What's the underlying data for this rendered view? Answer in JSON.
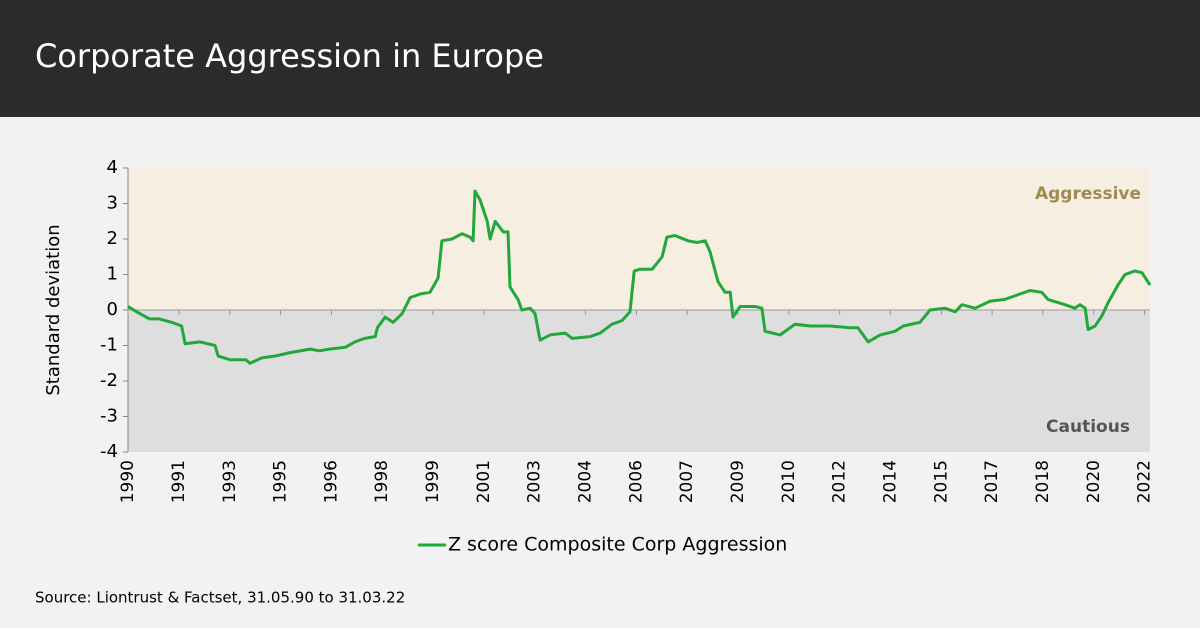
{
  "chart_data": {
    "type": "line",
    "title": "Corporate Aggression in Europe",
    "ylabel": "Standard deviation",
    "annotations": [
      "Aggressive",
      "Cautious"
    ],
    "source": "Source: Liontrust & Factset, 31.05.90 to 31.03.22",
    "regions": [
      {
        "from": 0,
        "to": 4,
        "color": "#f5eee1"
      },
      {
        "from": -4,
        "to": 0,
        "color": "#dedede"
      }
    ],
    "x": [
      1990.33,
      1990.6,
      1991.0,
      1991.3,
      1991.7,
      1992.0,
      1992.11,
      1992.58,
      1993.04,
      1993.14,
      1993.5,
      1994.0,
      1994.13,
      1994.5,
      1994.9,
      1995.38,
      1996.0,
      1996.3,
      1996.6,
      1997.1,
      1997.4,
      1997.7,
      1998.03,
      1998.1,
      1998.34,
      1998.59,
      1998.87,
      1999.12,
      1999.43,
      1999.74,
      1999.99,
      2000.11,
      2000.42,
      2000.74,
      2000.99,
      2001.08,
      2001.14,
      2001.3,
      2001.52,
      2001.61,
      2001.77,
      2002.02,
      2002.17,
      2002.23,
      2002.48,
      2002.6,
      2002.86,
      2003.01,
      2003.17,
      2003.48,
      2003.95,
      2004.17,
      2004.73,
      2005.04,
      2005.41,
      2005.72,
      2005.97,
      2006.1,
      2006.28,
      2006.66,
      2006.97,
      2007.12,
      2007.37,
      2007.78,
      2008.06,
      2008.31,
      2008.46,
      2008.71,
      2008.93,
      2009.09,
      2009.18,
      2009.4,
      2009.87,
      2010.08,
      2010.18,
      2010.65,
      2011.11,
      2011.58,
      2012.2,
      2012.83,
      2013.07,
      2013.39,
      2013.76,
      2014.23,
      2014.48,
      2015.0,
      2015.32,
      2015.78,
      2016.1,
      2016.31,
      2016.72,
      2017.19,
      2017.65,
      2018.12,
      2018.43,
      2018.8,
      2018.99,
      2019.52,
      2019.83,
      2019.99,
      2020.15,
      2020.24,
      2020.46,
      2020.68,
      2020.86,
      2021.17,
      2021.39,
      2021.7,
      2021.92,
      2022.17
    ],
    "series": [
      {
        "name": "Z score Composite Corp Aggression",
        "color": "#22a83a",
        "values": [
          0.1,
          -0.05,
          -0.25,
          -0.25,
          -0.35,
          -0.45,
          -0.95,
          -0.9,
          -1.0,
          -1.3,
          -1.4,
          -1.4,
          -1.5,
          -1.35,
          -1.3,
          -1.2,
          -1.1,
          -1.15,
          -1.1,
          -1.05,
          -0.9,
          -0.8,
          -0.75,
          -0.5,
          -0.2,
          -0.35,
          -0.1,
          0.35,
          0.45,
          0.5,
          0.9,
          1.95,
          2.0,
          2.15,
          2.05,
          1.95,
          3.35,
          3.1,
          2.5,
          2.0,
          2.5,
          2.2,
          2.2,
          0.65,
          0.3,
          0.0,
          0.05,
          -0.1,
          -0.85,
          -0.7,
          -0.65,
          -0.8,
          -0.75,
          -0.65,
          -0.4,
          -0.3,
          -0.05,
          1.1,
          1.15,
          1.15,
          1.5,
          2.05,
          2.1,
          1.95,
          1.9,
          1.95,
          1.65,
          0.8,
          0.5,
          0.5,
          -0.2,
          0.1,
          0.1,
          0.05,
          -0.6,
          -0.7,
          -0.4,
          -0.45,
          -0.45,
          -0.5,
          -0.5,
          -0.9,
          -0.7,
          -0.6,
          -0.45,
          -0.35,
          0.0,
          0.05,
          -0.05,
          0.15,
          0.05,
          0.25,
          0.3,
          0.45,
          0.55,
          0.5,
          0.3,
          0.15,
          0.05,
          0.15,
          0.05,
          -0.55,
          -0.45,
          -0.15,
          0.2,
          0.7,
          1.0,
          1.1,
          1.05,
          0.7
        ]
      }
    ],
    "xlim": [
      1990.33,
      2022.17
    ],
    "xticks": [
      {
        "value": 1990.33,
        "label": "1990"
      },
      {
        "value": 1991.92,
        "label": "1991"
      },
      {
        "value": 1993.5,
        "label": "1993"
      },
      {
        "value": 1995.08,
        "label": "1995"
      },
      {
        "value": 1996.67,
        "label": "1996"
      },
      {
        "value": 1998.25,
        "label": "1998"
      },
      {
        "value": 1999.83,
        "label": "1999"
      },
      {
        "value": 2001.42,
        "label": "2001"
      },
      {
        "value": 2003.0,
        "label": "2003"
      },
      {
        "value": 2004.58,
        "label": "2004"
      },
      {
        "value": 2006.17,
        "label": "2006"
      },
      {
        "value": 2007.75,
        "label": "2007"
      },
      {
        "value": 2009.33,
        "label": "2009"
      },
      {
        "value": 2010.92,
        "label": "2010"
      },
      {
        "value": 2012.5,
        "label": "2012"
      },
      {
        "value": 2014.08,
        "label": "2014"
      },
      {
        "value": 2015.67,
        "label": "2015"
      },
      {
        "value": 2017.25,
        "label": "2017"
      },
      {
        "value": 2018.83,
        "label": "2018"
      },
      {
        "value": 2020.42,
        "label": "2020"
      },
      {
        "value": 2022.0,
        "label": "2022"
      }
    ],
    "ylim": [
      -4,
      4
    ],
    "yticks": [
      -4,
      -3,
      -2,
      -1,
      0,
      1,
      2,
      3,
      4
    ],
    "legend": "bottom"
  }
}
